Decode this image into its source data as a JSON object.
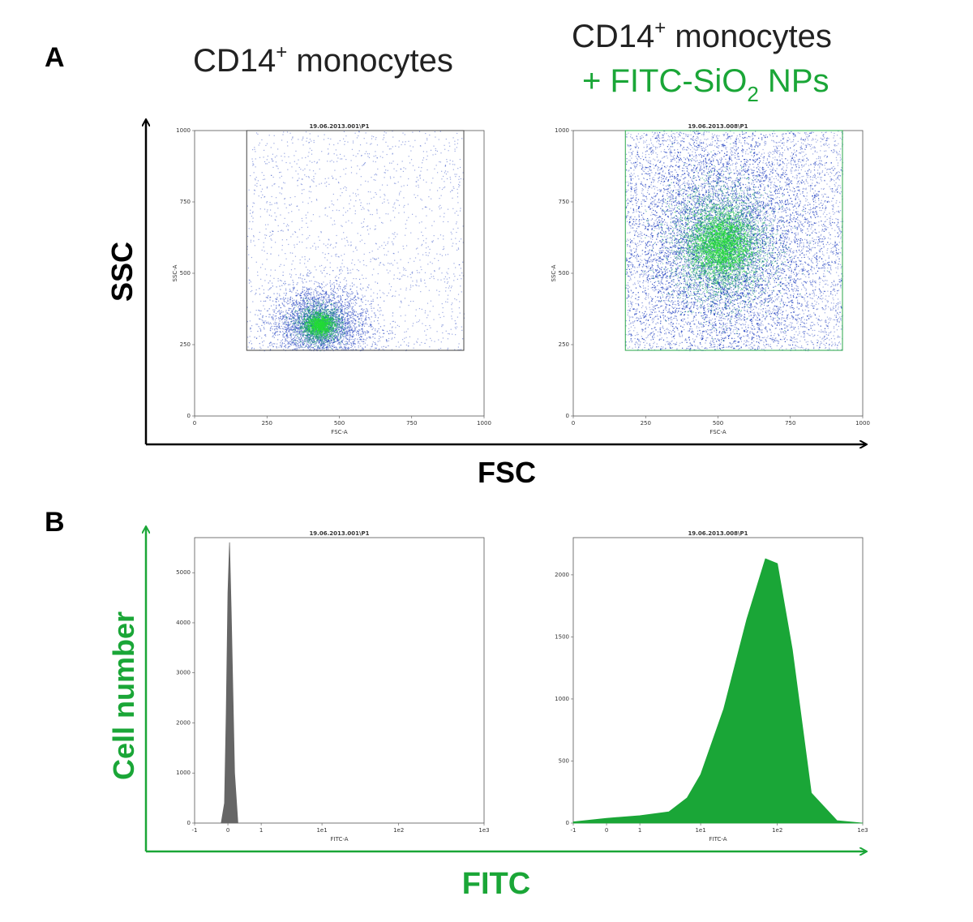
{
  "panel_labels": [
    "A",
    "B"
  ],
  "colors": {
    "green": "#1aa637",
    "black": "#000000",
    "gray_fill": "#666666",
    "scatter_blue": "#1f3fbf",
    "scatter_green": "#22dd33"
  },
  "headers": {
    "left": {
      "line1_main": "CD14",
      "line1_sup": "+",
      "line1_tail": " monocytes"
    },
    "right": {
      "line1_main": "CD14",
      "line1_sup": "+",
      "line1_tail": " monocytes",
      "line2_a": "+ FITC-SiO",
      "line2_sub": "2",
      "line2_b": " NPs"
    }
  },
  "big_axes": {
    "A": {
      "x_label": "FSC",
      "y_label": "SSC"
    },
    "B": {
      "x_label": "FITC",
      "y_label": "Cell number"
    }
  },
  "chart_data": [
    {
      "type": "scatter",
      "panel": "A",
      "title": "19.06.2013.001\\P1",
      "xlabel": "FSC-A",
      "ylabel": "SSC-A",
      "xlim": [
        0,
        1000
      ],
      "ylim": [
        0,
        1000
      ],
      "x_ticks": [
        "0",
        "250",
        "500",
        "750",
        "1000"
      ],
      "y_ticks": [
        "0",
        "250",
        "500",
        "750",
        "1000"
      ],
      "gate": {
        "x": [
          180,
          930
        ],
        "y": [
          230,
          1000
        ]
      },
      "density_center": {
        "x": 430,
        "y": 320
      }
    },
    {
      "type": "scatter",
      "panel": "A",
      "title": "19.06.2013.008\\P1",
      "xlabel": "FSC-A",
      "ylabel": "SSC-A",
      "xlim": [
        0,
        1000
      ],
      "ylim": [
        0,
        1000
      ],
      "x_ticks": [
        "0",
        "250",
        "500",
        "750",
        "1000"
      ],
      "y_ticks": [
        "0",
        "250",
        "500",
        "750",
        "1000"
      ],
      "gate": {
        "x": [
          180,
          930
        ],
        "y": [
          230,
          1000
        ]
      },
      "density_center": {
        "x": 510,
        "y": 600
      }
    },
    {
      "type": "area",
      "panel": "B",
      "title": "19.06.2013.001\\P1",
      "xlabel": "FITC-A",
      "x_scale": "biexponential",
      "x_ticks": [
        "-1",
        "0",
        "1",
        "1e1",
        "1e2",
        "1e3"
      ],
      "y_ticks": [
        "0",
        "1000",
        "2000",
        "3000",
        "4000",
        "5000"
      ],
      "ylim": [
        0,
        5700
      ],
      "x": [
        -0.2,
        -0.1,
        -0.05,
        0,
        0.05,
        0.1,
        0.2,
        0.3
      ],
      "y": [
        0,
        400,
        2200,
        4600,
        5600,
        4200,
        1000,
        0
      ]
    },
    {
      "type": "area",
      "panel": "B",
      "title": "19.06.2013.008\\P1",
      "xlabel": "FITC-A",
      "x_scale": "biexponential",
      "x_ticks": [
        "-1",
        "0",
        "1",
        "1e1",
        "1e2",
        "1e3"
      ],
      "y_ticks": [
        "0",
        "500",
        "1000",
        "1500",
        "2000"
      ],
      "ylim": [
        0,
        2300
      ],
      "x": [
        -1,
        0,
        1,
        3,
        6,
        10,
        20,
        40,
        70,
        100,
        150,
        250,
        500,
        1000
      ],
      "y": [
        10,
        40,
        60,
        90,
        200,
        380,
        950,
        1700,
        2150,
        2050,
        1400,
        250,
        20,
        0
      ]
    }
  ]
}
